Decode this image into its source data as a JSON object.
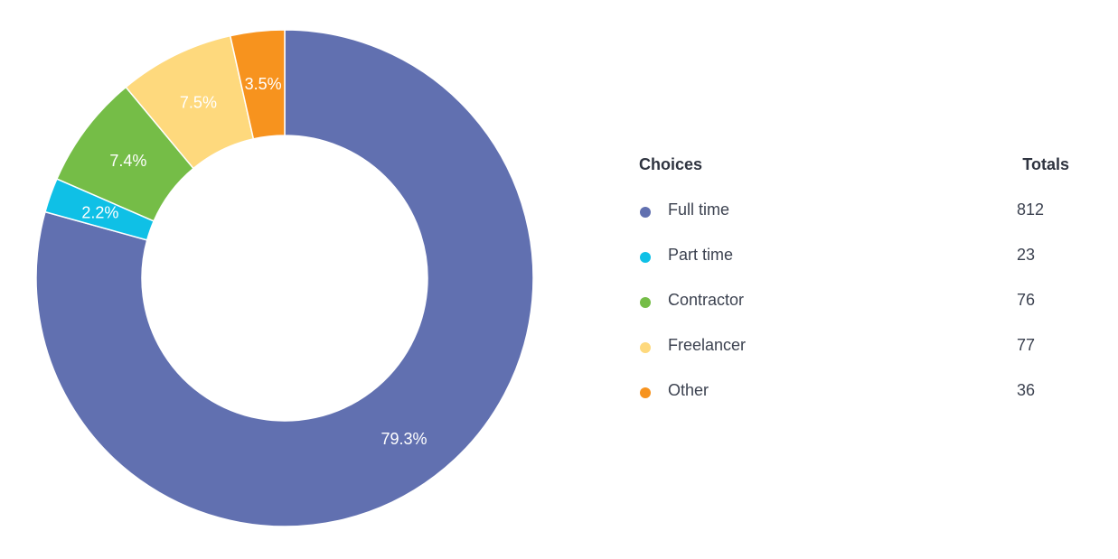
{
  "chart_data": {
    "type": "pie",
    "donut": true,
    "categories": [
      "Full time",
      "Part time",
      "Contractor",
      "Freelancer",
      "Other"
    ],
    "values": [
      812,
      23,
      76,
      77,
      36
    ],
    "percent_labels": [
      "79.3%",
      "2.2%",
      "7.4%",
      "7.5%",
      "3.5%"
    ],
    "colors": [
      "#6170b0",
      "#0fc0e6",
      "#75bd47",
      "#fed97d",
      "#f7931e"
    ],
    "legend": {
      "header_choices": "Choices",
      "header_totals": "Totals",
      "placement": "right"
    }
  },
  "legend_rows": [
    {
      "name": "Full time",
      "total": "812"
    },
    {
      "name": "Part time",
      "total": "23"
    },
    {
      "name": "Contractor",
      "total": "76"
    },
    {
      "name": "Freelancer",
      "total": "77"
    },
    {
      "name": "Other",
      "total": "36"
    }
  ]
}
